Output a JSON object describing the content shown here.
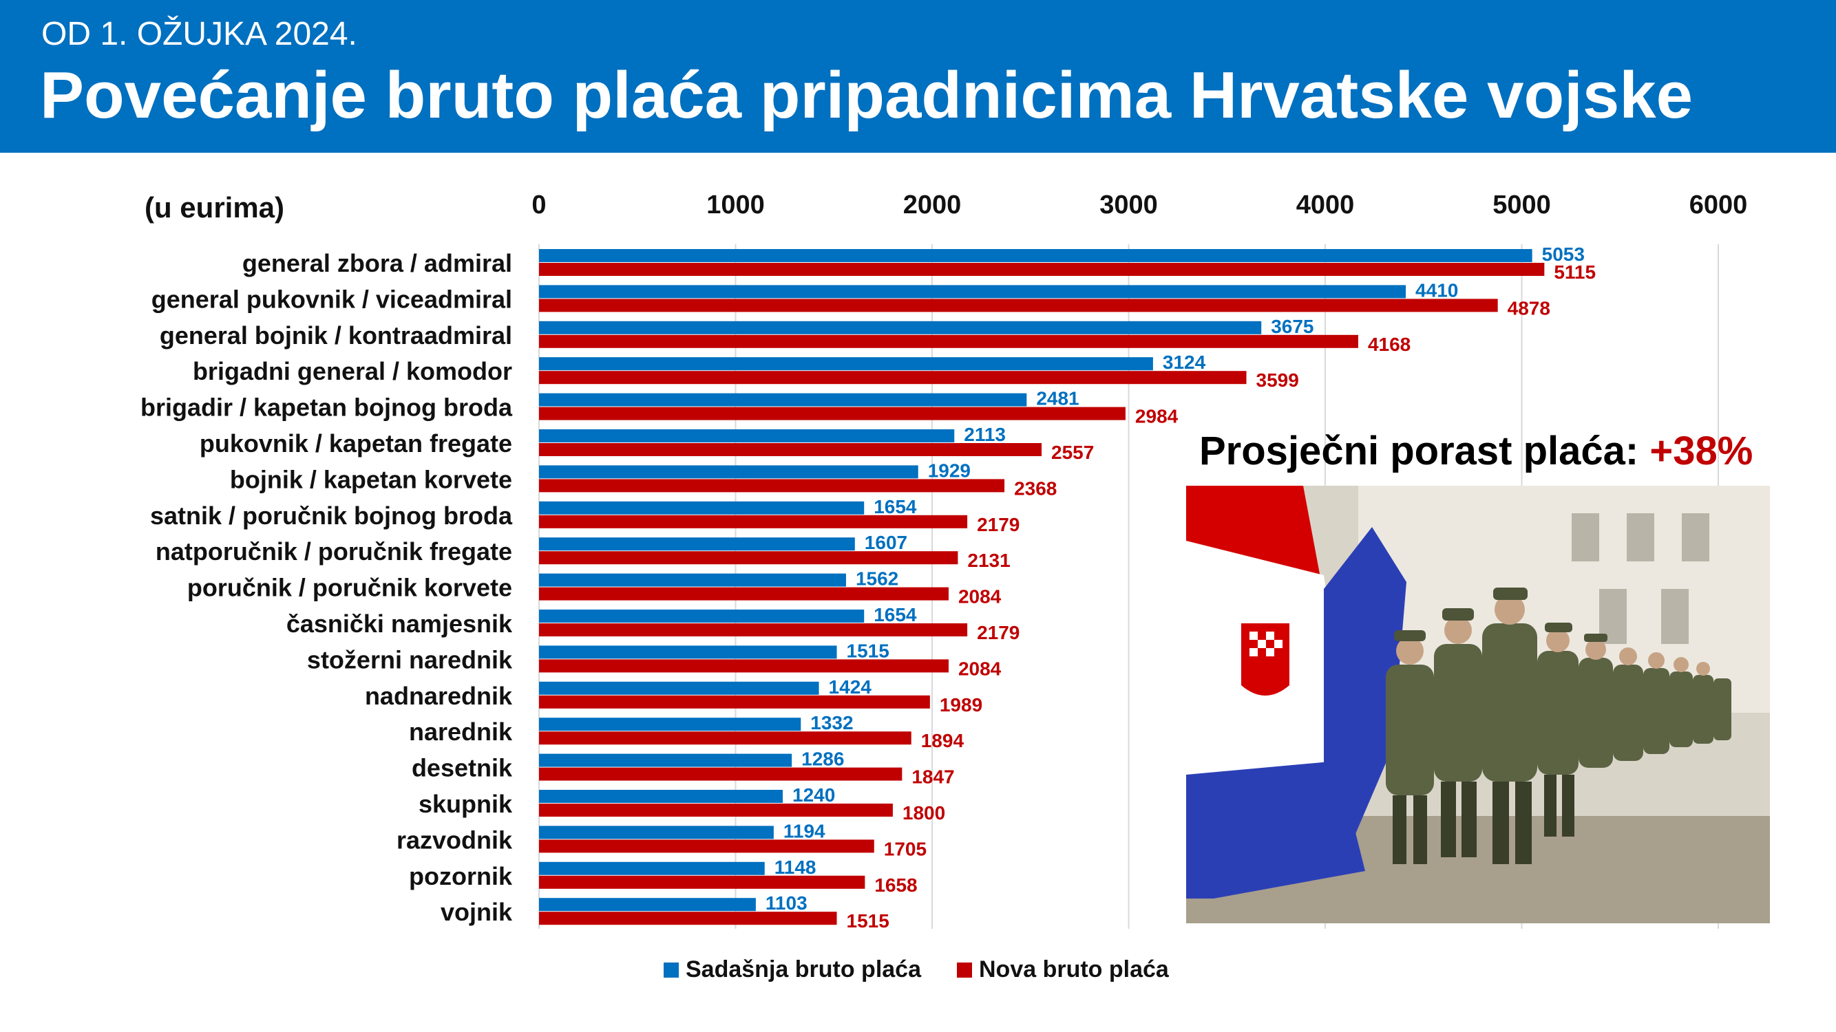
{
  "header": {
    "kicker": "OD 1. OŽUJKA 2024.",
    "title": "Povećanje bruto plaća pripadnicima Hrvatske vojske"
  },
  "unit_note": "(u eurima)",
  "average": {
    "label": "Prosječni porast plaća:",
    "value": "+38%"
  },
  "colors": {
    "banner": "#0070c0",
    "current": "#0070c0",
    "new": "#c00000"
  },
  "chart_data": {
    "type": "bar",
    "orientation": "horizontal",
    "xlim": [
      0,
      6000
    ],
    "xticks": [
      0,
      1000,
      2000,
      3000,
      4000,
      5000,
      6000
    ],
    "grid": true,
    "legend_position": "bottom",
    "categories": [
      "general zbora / admiral",
      "general pukovnik / viceadmiral",
      "general bojnik / kontraadmiral",
      "brigadni general / komodor",
      "brigadir / kapetan bojnog broda",
      "pukovnik / kapetan fregate",
      "bojnik / kapetan korvete",
      "satnik / poručnik bojnog broda",
      "natporučnik / poručnik fregate",
      "poručnik / poručnik korvete",
      "časnički namjesnik",
      "stožerni narednik",
      "nadnarednik",
      "narednik",
      "desetnik",
      "skupnik",
      "razvodnik",
      "pozornik",
      "vojnik"
    ],
    "series": [
      {
        "name": "Sadašnja bruto plaća",
        "color": "#0070c0",
        "values": [
          5053,
          4410,
          3675,
          3124,
          2481,
          2113,
          1929,
          1654,
          1607,
          1562,
          1654,
          1515,
          1424,
          1332,
          1286,
          1240,
          1194,
          1148,
          1103
        ]
      },
      {
        "name": "Nova bruto plaća",
        "color": "#c00000",
        "values": [
          5115,
          4878,
          4168,
          3599,
          2984,
          2557,
          2368,
          2179,
          2131,
          2084,
          2179,
          2084,
          1989,
          1894,
          1847,
          1800,
          1705,
          1658,
          1515
        ]
      }
    ]
  }
}
